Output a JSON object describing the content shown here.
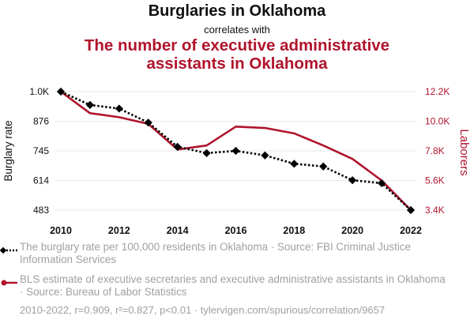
{
  "header": {
    "title": "Burglaries in Oklahoma",
    "connector": "correlates with",
    "subtitle": "The number of executive administrative assistants in Oklahoma"
  },
  "colors": {
    "series1": "#000000",
    "series2": "#b0142c",
    "muted": "#a0a0a0"
  },
  "chart_data": {
    "type": "line",
    "x": [
      2010,
      2011,
      2012,
      2013,
      2014,
      2015,
      2016,
      2017,
      2018,
      2019,
      2020,
      2021,
      2022
    ],
    "xticks": [
      2010,
      2012,
      2014,
      2016,
      2018,
      2020,
      2022
    ],
    "y_left": {
      "label": "Burglary rate",
      "ticks": [
        "483",
        "614",
        "745",
        "876",
        "1.0K"
      ],
      "tick_values": [
        483,
        614,
        745,
        876,
        1007
      ],
      "range": [
        483,
        1007
      ]
    },
    "y_right": {
      "label": "Laborers",
      "ticks": [
        "3.4K",
        "5.6K",
        "7.8K",
        "10.0K",
        "12.2K"
      ],
      "tick_values": [
        3400,
        5600,
        7800,
        10000,
        12200
      ],
      "range": [
        3400,
        12200
      ]
    },
    "series": [
      {
        "name": "The burglary rate per 100,000 residents in Oklahoma · Source: FBI Criminal Justice Information Services",
        "axis": "left",
        "style": "dotted",
        "marker": "diamond",
        "values": [
          1007,
          948,
          932,
          870,
          763,
          735,
          745,
          725,
          688,
          676,
          615,
          602,
          483
        ]
      },
      {
        "name": "BLS estimate of executive secretaries and executive administrative assistants in Oklahoma · Source: Bureau of Labor Statistics",
        "axis": "right",
        "style": "solid",
        "marker": "none",
        "values": [
          12200,
          10600,
          10300,
          9800,
          7900,
          8200,
          9600,
          9500,
          9100,
          8200,
          7200,
          5600,
          3400
        ]
      }
    ]
  },
  "legend": {
    "series1": "The burglary rate per 100,000 residents in Oklahoma · Source: FBI Criminal Justice Information Services",
    "series2": "BLS estimate of executive secretaries and executive administrative assistants in Oklahoma · Source: Bureau of Labor Statistics"
  },
  "footer": "2010-2022, r=0.909, r²=0.827, p<0.01 · tylervigen.com/spurious/correlation/9657"
}
